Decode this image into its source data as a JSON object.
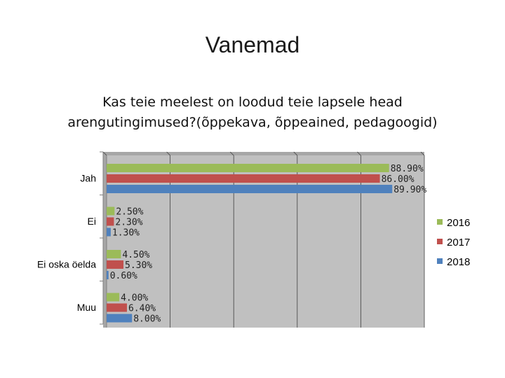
{
  "slide": {
    "title": "Vanemad"
  },
  "chart_data": {
    "type": "bar",
    "orientation": "horizontal",
    "title_lines": [
      "Kas teie meelest on loodud teie lapsele head",
      "arengutingimused?(õppekava, õppeained, pedagoogid)"
    ],
    "categories": [
      "Jah",
      "Ei",
      "Ei oska öelda",
      "Muu"
    ],
    "series": [
      {
        "name": "2016",
        "color": "#9bbb59",
        "values": [
          88.9,
          2.5,
          4.5,
          4.0
        ],
        "labels": [
          "88.90%",
          "2.50%",
          "4.50%",
          "4.00%"
        ]
      },
      {
        "name": "2017",
        "color": "#c0504d",
        "values": [
          86.0,
          2.3,
          5.3,
          6.4
        ],
        "labels": [
          "86.00%",
          "2.30%",
          "5.30%",
          "6.40%"
        ]
      },
      {
        "name": "2018",
        "color": "#4f81bd",
        "values": [
          89.9,
          1.3,
          0.6,
          8.0
        ],
        "labels": [
          "89.90%",
          "1.30%",
          "0.60%",
          "8.00%"
        ]
      }
    ],
    "xlim": [
      0,
      100
    ],
    "grid": true,
    "plot_background": "#c0c0c0",
    "legend_position": "right"
  }
}
